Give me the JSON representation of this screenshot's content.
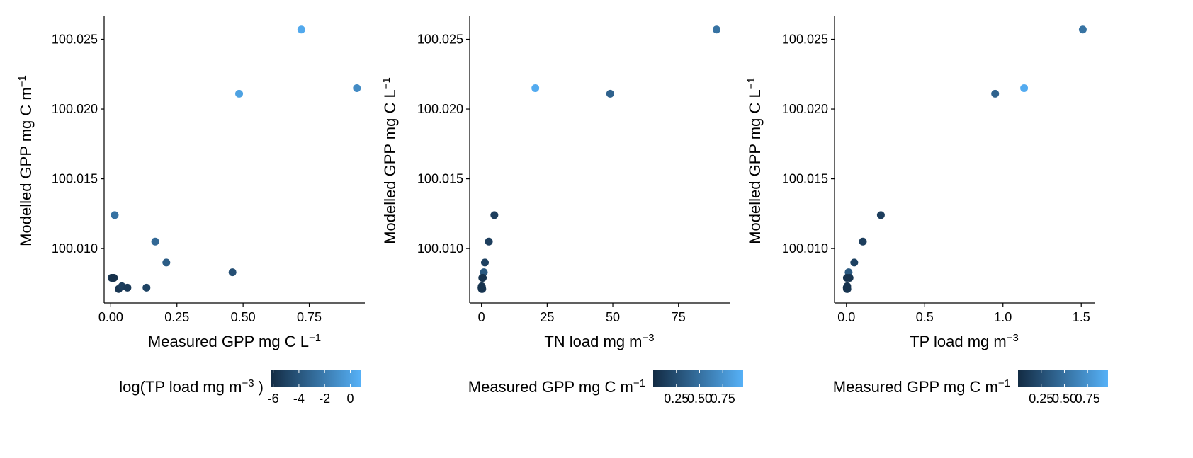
{
  "colors": {
    "low": "#132B43",
    "high": "#56B1F7",
    "axis": "#000000",
    "background": "#ffffff"
  },
  "chart_data": [
    {
      "type": "scatter",
      "title": "",
      "xlabel": "Measured GPP mg C L",
      "xlabel_sup": "−1",
      "xlabel_tail": "",
      "ylabel": "Modelled GPP mg C m",
      "ylabel_sup": "−1",
      "xlim": [
        -0.025,
        0.96
      ],
      "ylim": [
        100.0061,
        100.0267
      ],
      "x_ticks": [
        0.0,
        0.25,
        0.5,
        0.75
      ],
      "x_tick_labels": [
        "0.00",
        "0.25",
        "0.50",
        "0.75"
      ],
      "y_ticks": [
        100.01,
        100.015,
        100.02,
        100.025
      ],
      "y_tick_labels": [
        "100.010",
        "100.015",
        "100.020",
        "100.025"
      ],
      "color_variable": "log(TP load mg m−3)",
      "points": [
        {
          "x": 0.72,
          "y": 100.0257,
          "c": 0.4
        },
        {
          "x": 0.485,
          "y": 100.0211,
          "c": 0.0
        },
        {
          "x": 0.93,
          "y": 100.0215,
          "c": -1.2
        },
        {
          "x": 0.015,
          "y": 100.0124,
          "c": -2.5
        },
        {
          "x": 0.168,
          "y": 100.0105,
          "c": -3.0
        },
        {
          "x": 0.21,
          "y": 100.009,
          "c": -3.6
        },
        {
          "x": 0.46,
          "y": 100.0083,
          "c": -4.3
        },
        {
          "x": 0.003,
          "y": 100.0079,
          "c": -5.5
        },
        {
          "x": 0.012,
          "y": 100.0079,
          "c": -5.8
        },
        {
          "x": 0.008,
          "y": 100.0079,
          "c": -5.9
        },
        {
          "x": 0.03,
          "y": 100.0071,
          "c": -5.6
        },
        {
          "x": 0.042,
          "y": 100.0073,
          "c": -5.2
        },
        {
          "x": 0.063,
          "y": 100.0072,
          "c": -5.4
        },
        {
          "x": 0.135,
          "y": 100.0072,
          "c": -4.9
        }
      ],
      "legend": {
        "title": "log(TP load mg m",
        "title_sup": "−3",
        "title_tail": ")",
        "range": [
          -6.2,
          0.8
        ],
        "ticks": [
          -6,
          -4,
          -2,
          0
        ],
        "tick_labels": [
          "-6",
          "-4",
          "-2",
          "0"
        ]
      }
    },
    {
      "type": "scatter",
      "title": "",
      "xlabel": "TN load mg m",
      "xlabel_sup": "−3",
      "xlabel_tail": "",
      "ylabel": "Modelled GPP mg C L",
      "ylabel_sup": "−1",
      "xlim": [
        -4.5,
        94.5
      ],
      "ylim": [
        100.0061,
        100.0267
      ],
      "x_ticks": [
        0,
        25,
        50,
        75
      ],
      "x_tick_labels": [
        "0",
        "25",
        "50",
        "75"
      ],
      "y_ticks": [
        100.01,
        100.015,
        100.02,
        100.025
      ],
      "y_tick_labels": [
        "100.010",
        "100.015",
        "100.020",
        "100.025"
      ],
      "color_variable": "Measured GPP mg C m−1",
      "points": [
        {
          "x": 89.5,
          "y": 100.0257,
          "c": 0.52
        },
        {
          "x": 20.5,
          "y": 100.0215,
          "c": 0.93
        },
        {
          "x": 49.0,
          "y": 100.0211,
          "c": 0.4
        },
        {
          "x": 4.9,
          "y": 100.0124,
          "c": 0.14
        },
        {
          "x": 2.8,
          "y": 100.0105,
          "c": 0.14
        },
        {
          "x": 1.3,
          "y": 100.009,
          "c": 0.16
        },
        {
          "x": 0.9,
          "y": 100.0083,
          "c": 0.33
        },
        {
          "x": 0.3,
          "y": 100.0079,
          "c": 0.08
        },
        {
          "x": 0.5,
          "y": 100.0079,
          "c": 0.06
        },
        {
          "x": 0.1,
          "y": 100.0073,
          "c": 0.07
        },
        {
          "x": 0.2,
          "y": 100.0072,
          "c": 0.08
        },
        {
          "x": 0.1,
          "y": 100.0071,
          "c": 0.07
        },
        {
          "x": 0.3,
          "y": 100.0071,
          "c": 0.09
        },
        {
          "x": 0.0,
          "y": 100.0072,
          "c": 0.06
        }
      ],
      "legend": {
        "title": "Measured GPP mg C m",
        "title_sup": "−1",
        "title_tail": "",
        "range": [
          0.0,
          0.97
        ],
        "ticks": [
          0.25,
          0.5,
          0.75
        ],
        "tick_labels": [
          "0.25",
          "0.50",
          "0.75"
        ]
      }
    },
    {
      "type": "scatter",
      "title": "",
      "xlabel": "TP load mg m",
      "xlabel_sup": "−3",
      "xlabel_tail": "",
      "ylabel": "Modelled GPP mg C L",
      "ylabel_sup": "−1",
      "xlim": [
        -0.076,
        1.585
      ],
      "ylim": [
        100.0061,
        100.0267
      ],
      "x_ticks": [
        0.0,
        0.5,
        1.0,
        1.5
      ],
      "x_tick_labels": [
        "0.0",
        "0.5",
        "1.0",
        "1.5"
      ],
      "y_ticks": [
        100.01,
        100.015,
        100.02,
        100.025
      ],
      "y_tick_labels": [
        "100.010",
        "100.015",
        "100.020",
        "100.025"
      ],
      "color_variable": "Measured GPP mg C m−1",
      "points": [
        {
          "x": 1.51,
          "y": 100.0257,
          "c": 0.52
        },
        {
          "x": 1.135,
          "y": 100.0215,
          "c": 0.93
        },
        {
          "x": 0.95,
          "y": 100.0211,
          "c": 0.4
        },
        {
          "x": 0.22,
          "y": 100.0124,
          "c": 0.14
        },
        {
          "x": 0.105,
          "y": 100.0105,
          "c": 0.14
        },
        {
          "x": 0.05,
          "y": 100.009,
          "c": 0.16
        },
        {
          "x": 0.014,
          "y": 100.0083,
          "c": 0.33
        },
        {
          "x": 0.02,
          "y": 100.0079,
          "c": 0.08
        },
        {
          "x": 0.003,
          "y": 100.0079,
          "c": 0.06
        },
        {
          "x": 0.005,
          "y": 100.0073,
          "c": 0.07
        },
        {
          "x": 0.004,
          "y": 100.0072,
          "c": 0.08
        },
        {
          "x": 0.003,
          "y": 100.0071,
          "c": 0.07
        },
        {
          "x": 0.006,
          "y": 100.0071,
          "c": 0.09
        },
        {
          "x": 0.002,
          "y": 100.0072,
          "c": 0.06
        }
      ],
      "legend": {
        "title": "Measured GPP mg C m",
        "title_sup": "−1",
        "title_tail": "",
        "range": [
          0.0,
          0.97
        ],
        "ticks": [
          0.25,
          0.5,
          0.75
        ],
        "tick_labels": [
          "0.25",
          "0.50",
          "0.75"
        ]
      }
    }
  ]
}
